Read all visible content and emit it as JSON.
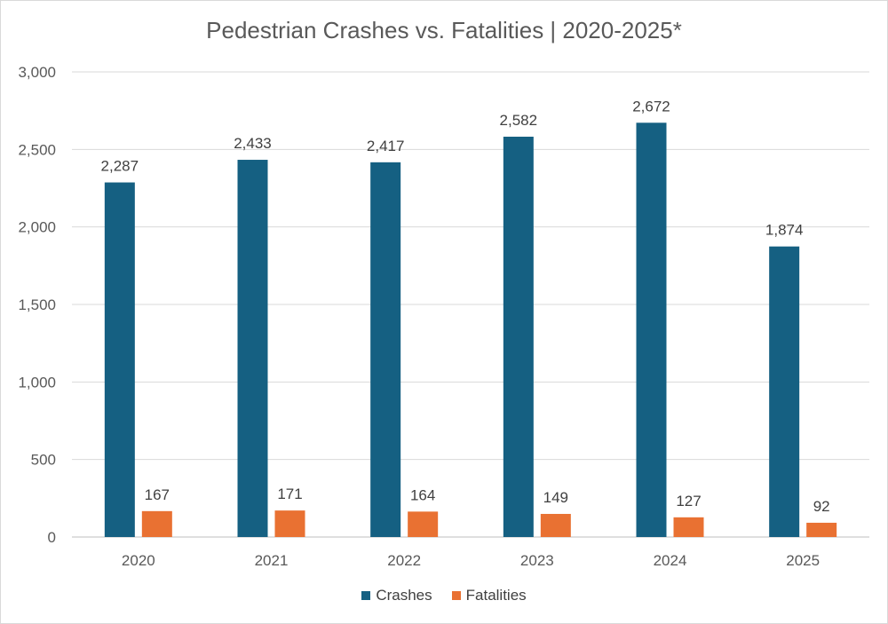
{
  "chart_data": {
    "type": "bar",
    "title": "Pedestrian Crashes vs. Fatalities | 2020-2025*",
    "xlabel": "",
    "ylabel": "",
    "categories": [
      "2020",
      "2021",
      "2022",
      "2023",
      "2024",
      "2025"
    ],
    "series": [
      {
        "name": "Crashes",
        "color": "#156082",
        "values": [
          2287,
          2433,
          2417,
          2582,
          2672,
          1874
        ],
        "labels": [
          "2,287",
          "2,433",
          "2,417",
          "2,582",
          "2,672",
          "1,874"
        ]
      },
      {
        "name": "Fatalities",
        "color": "#E97132",
        "values": [
          167,
          171,
          164,
          149,
          127,
          92
        ],
        "labels": [
          "167",
          "171",
          "164",
          "149",
          "127",
          "92"
        ]
      }
    ],
    "ylim": [
      0,
      3000
    ],
    "yticks": [
      0,
      500,
      1000,
      1500,
      2000,
      2500,
      3000
    ],
    "ytick_labels": [
      "0",
      "500",
      "1,000",
      "1,500",
      "2,000",
      "2,500",
      "3,000"
    ],
    "grid": true,
    "legend_position": "bottom-center"
  }
}
